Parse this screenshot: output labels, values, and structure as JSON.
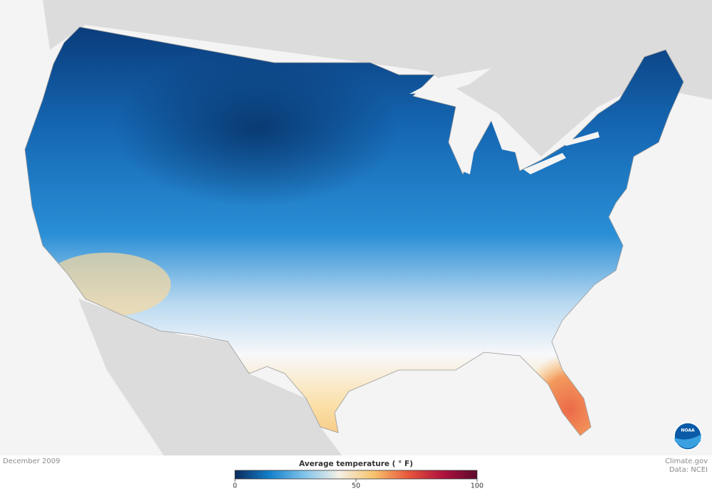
{
  "footer": {
    "date": "December 2009",
    "credit": "Climate.gov",
    "source": "Data: NCEI"
  },
  "logo": {
    "text": "NOAA"
  },
  "legend": {
    "title": "Average temperature ( ° F)",
    "range": [
      0,
      100
    ],
    "ticks": [
      0,
      50,
      100
    ],
    "colors": [
      "#0b2a5c",
      "#1380cc",
      "#7fc3ea",
      "#f4f0e6",
      "#f7c46f",
      "#e8583c",
      "#b0123e",
      "#5c0a2e"
    ]
  }
}
